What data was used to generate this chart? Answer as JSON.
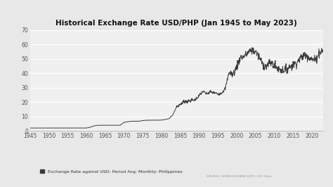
{
  "title": "Historical Exchange Rate USD/PHP (Jan 1945 to May 2023)",
  "legend_label": "Exchange Rate against USD: Period Avg: Monthly: Philippines",
  "source_text": "SOURCE: WWW.CECDATA.COM | CDC Data",
  "background_color": "#e8e8e8",
  "plot_bg_color": "#f0f0f0",
  "line_color": "#3a3a3a",
  "grid_color": "#ffffff",
  "ylim": [
    0,
    70
  ],
  "yticks": [
    0,
    10,
    20,
    30,
    40,
    50,
    60,
    70
  ],
  "xlim": [
    1945,
    2023
  ],
  "xticks": [
    1945,
    1950,
    1955,
    1960,
    1965,
    1970,
    1975,
    1980,
    1985,
    1990,
    1995,
    2000,
    2005,
    2010,
    2015,
    2020
  ],
  "years": [
    1945,
    1946,
    1947,
    1948,
    1949,
    1950,
    1951,
    1952,
    1953,
    1954,
    1955,
    1956,
    1957,
    1958,
    1959,
    1960,
    1961,
    1962,
    1963,
    1964,
    1965,
    1966,
    1967,
    1968,
    1969,
    1970,
    1971,
    1972,
    1973,
    1974,
    1975,
    1976,
    1977,
    1978,
    1979,
    1980,
    1981,
    1982,
    1983,
    1984,
    1985,
    1986,
    1987,
    1988,
    1989,
    1990,
    1991,
    1992,
    1993,
    1994,
    1995,
    1996,
    1997,
    1998,
    1999,
    2000,
    2001,
    2002,
    2003,
    2004,
    2005,
    2006,
    2007,
    2008,
    2009,
    2010,
    2011,
    2012,
    2013,
    2014,
    2015,
    2016,
    2017,
    2018,
    2019,
    2020,
    2021,
    2022,
    2023
  ],
  "values": [
    2.0,
    2.0,
    2.0,
    2.0,
    2.0,
    2.0,
    2.0,
    2.0,
    2.0,
    2.0,
    2.0,
    2.0,
    2.0,
    2.0,
    2.0,
    2.0,
    2.5,
    3.5,
    3.9,
    3.9,
    3.9,
    3.9,
    3.9,
    3.9,
    3.9,
    5.9,
    6.4,
    6.7,
    6.7,
    6.7,
    7.2,
    7.4,
    7.4,
    7.4,
    7.4,
    7.5,
    7.9,
    8.5,
    11.0,
    16.5,
    18.5,
    20.4,
    20.5,
    21.1,
    21.7,
    24.3,
    27.5,
    25.5,
    27.1,
    26.4,
    25.7,
    26.2,
    29.5,
    40.9,
    38.9,
    44.2,
    51.0,
    51.6,
    54.2,
    56.0,
    55.1,
    51.3,
    46.1,
    44.5,
    47.7,
    45.1,
    43.3,
    42.2,
    42.4,
    44.4,
    45.5,
    47.5,
    50.4,
    52.7,
    51.8,
    49.6,
    49.3,
    54.5,
    56.0
  ]
}
